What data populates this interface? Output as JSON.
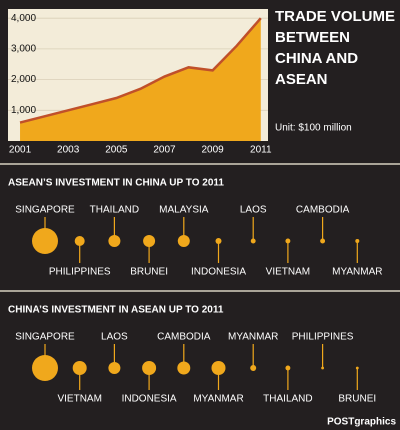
{
  "chart_data": [
    {
      "type": "area",
      "title": "TRADE VOLUME BETWEEN CHINA AND ASEAN",
      "note": "Unit: $100 million",
      "x": [
        2001,
        2002,
        2003,
        2004,
        2005,
        2006,
        2007,
        2008,
        2009,
        2010,
        2011
      ],
      "values": [
        600,
        800,
        1000,
        1200,
        1400,
        1700,
        2100,
        2400,
        2300,
        3100,
        4000
      ],
      "color": "#f0a81c",
      "line_color": "#c0502a",
      "xlim": [
        2000.5,
        2011.3
      ],
      "xticks": [
        2001,
        2003,
        2005,
        2007,
        2009,
        2011
      ],
      "ylim": [
        0,
        4300
      ],
      "yticks": [
        {
          "value": 1000,
          "label": "1,000"
        },
        {
          "value": 2000,
          "label": "2,000"
        },
        {
          "value": 3000,
          "label": "3,000"
        },
        {
          "value": 4000,
          "label": "4,000"
        }
      ],
      "grid": true
    },
    {
      "type": "bubble",
      "title": "ASEAN’S INVESTMENT IN CHINA UP TO 2011",
      "categories": [
        "SINGAPORE",
        "PHILIPPINES",
        "THAILAND",
        "BRUNEI",
        "MALAYSIA",
        "INDONESIA",
        "LAOS",
        "VIETNAM",
        "CAMBODIA",
        "MYANMAR"
      ],
      "values": [
        169,
        25,
        36,
        36,
        36,
        9,
        6,
        6,
        6,
        4
      ],
      "color": "#f0a81c"
    },
    {
      "type": "bubble",
      "title": "CHINA’S INVESTMENT IN ASEAN UP TO 2011",
      "categories": [
        "SINGAPORE",
        "VIETNAM",
        "LAOS",
        "INDONESIA",
        "CAMBODIA",
        "MYANMAR",
        "MYANMAR",
        "THAILAND",
        "PHILIPPINES",
        "BRUNEI"
      ],
      "values": [
        169,
        49,
        36,
        49,
        42,
        49,
        9,
        6,
        2,
        2
      ],
      "color": "#f0a81c"
    }
  ],
  "credit": "POSTgraphics"
}
